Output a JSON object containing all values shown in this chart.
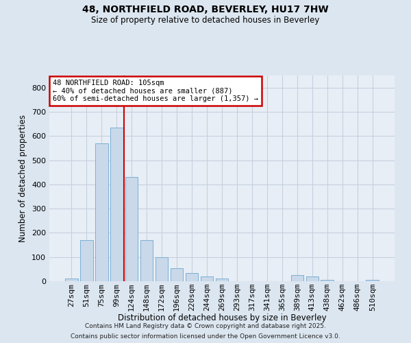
{
  "title1": "48, NORTHFIELD ROAD, BEVERLEY, HU17 7HW",
  "title2": "Size of property relative to detached houses in Beverley",
  "xlabel": "Distribution of detached houses by size in Beverley",
  "ylabel": "Number of detached properties",
  "bar_color": "#c9d9ea",
  "bar_edge_color": "#7bafd4",
  "categories": [
    "27sqm",
    "51sqm",
    "75sqm",
    "99sqm",
    "124sqm",
    "148sqm",
    "172sqm",
    "196sqm",
    "220sqm",
    "244sqm",
    "269sqm",
    "293sqm",
    "317sqm",
    "341sqm",
    "365sqm",
    "389sqm",
    "413sqm",
    "438sqm",
    "462sqm",
    "486sqm",
    "510sqm"
  ],
  "values": [
    10,
    170,
    570,
    635,
    430,
    170,
    100,
    55,
    35,
    20,
    10,
    0,
    0,
    0,
    0,
    25,
    20,
    5,
    0,
    0,
    5
  ],
  "vline_x": 3.5,
  "vline_color": "#cc0000",
  "annotation_line1": "48 NORTHFIELD ROAD: 105sqm",
  "annotation_line2": "← 40% of detached houses are smaller (887)",
  "annotation_line3": "60% of semi-detached houses are larger (1,357) →",
  "annotation_box_color": "#cc0000",
  "ylim": [
    0,
    850
  ],
  "yticks": [
    0,
    100,
    200,
    300,
    400,
    500,
    600,
    700,
    800
  ],
  "footer1": "Contains HM Land Registry data © Crown copyright and database right 2025.",
  "footer2": "Contains public sector information licensed under the Open Government Licence v3.0.",
  "bg_color": "#dce6f0",
  "plot_bg_color": "#e8eef5",
  "grid_color": "#c5d0de"
}
